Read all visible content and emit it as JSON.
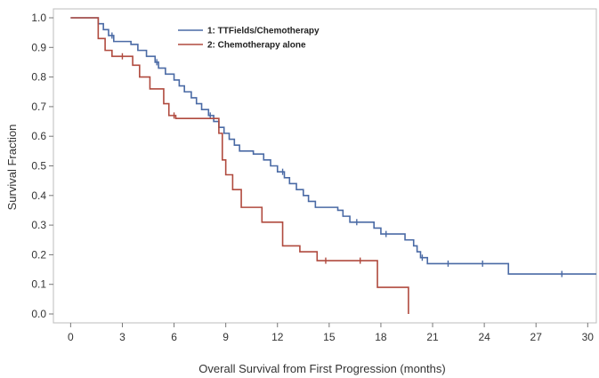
{
  "chart_data": {
    "type": "line",
    "step": true,
    "title": "",
    "xlabel": "Overall Survival from First Progression (months)",
    "ylabel": "Survival Fraction",
    "xlim": [
      -1,
      30.5
    ],
    "ylim": [
      -0.03,
      1.03
    ],
    "xticks": [
      0,
      3,
      6,
      9,
      12,
      15,
      18,
      21,
      24,
      27,
      30
    ],
    "yticks": [
      0.0,
      0.1,
      0.2,
      0.3,
      0.4,
      0.5,
      0.6,
      0.7,
      0.8,
      0.9,
      1.0
    ],
    "ytick_labels": [
      "0.0",
      "0.1",
      "0.2",
      "0.3",
      "0.4",
      "0.5",
      "0.6",
      "0.7",
      "0.8",
      "0.9",
      "1.0"
    ],
    "legend_position": "top-center",
    "series": [
      {
        "name": "1: TTFields/Chemotherapy",
        "color": "#4a6aa5",
        "points": [
          [
            0,
            1.0
          ],
          [
            1.3,
            1.0
          ],
          [
            1.6,
            0.98
          ],
          [
            1.9,
            0.96
          ],
          [
            2.2,
            0.94
          ],
          [
            2.5,
            0.92
          ],
          [
            3.5,
            0.91
          ],
          [
            3.9,
            0.89
          ],
          [
            4.4,
            0.87
          ],
          [
            4.9,
            0.85
          ],
          [
            5.1,
            0.83
          ],
          [
            5.5,
            0.81
          ],
          [
            6.0,
            0.79
          ],
          [
            6.3,
            0.77
          ],
          [
            6.6,
            0.75
          ],
          [
            7.0,
            0.73
          ],
          [
            7.3,
            0.71
          ],
          [
            7.6,
            0.69
          ],
          [
            8.0,
            0.67
          ],
          [
            8.3,
            0.65
          ],
          [
            8.6,
            0.63
          ],
          [
            8.9,
            0.61
          ],
          [
            9.2,
            0.59
          ],
          [
            9.5,
            0.57
          ],
          [
            9.8,
            0.55
          ],
          [
            10.6,
            0.54
          ],
          [
            11.2,
            0.52
          ],
          [
            11.6,
            0.5
          ],
          [
            12.0,
            0.48
          ],
          [
            12.4,
            0.46
          ],
          [
            12.7,
            0.44
          ],
          [
            13.1,
            0.42
          ],
          [
            13.5,
            0.4
          ],
          [
            13.8,
            0.38
          ],
          [
            14.2,
            0.36
          ],
          [
            15.5,
            0.35
          ],
          [
            15.8,
            0.33
          ],
          [
            16.2,
            0.31
          ],
          [
            17.6,
            0.29
          ],
          [
            18.0,
            0.27
          ],
          [
            19.4,
            0.25
          ],
          [
            19.9,
            0.23
          ],
          [
            20.1,
            0.21
          ],
          [
            20.3,
            0.19
          ],
          [
            20.7,
            0.17
          ],
          [
            25.4,
            0.135
          ],
          [
            30.5,
            0.135
          ]
        ],
        "censor_x": [
          2.4,
          5.0,
          8.1,
          12.3,
          16.6,
          18.3,
          20.4,
          21.9,
          23.9,
          28.5
        ]
      },
      {
        "name": "2: Chemotherapy alone",
        "color": "#b04a3e",
        "points": [
          [
            0,
            1.0
          ],
          [
            1.3,
            1.0
          ],
          [
            1.6,
            0.93
          ],
          [
            2.0,
            0.89
          ],
          [
            2.4,
            0.87
          ],
          [
            3.6,
            0.84
          ],
          [
            4.0,
            0.8
          ],
          [
            4.6,
            0.76
          ],
          [
            5.4,
            0.71
          ],
          [
            5.7,
            0.67
          ],
          [
            6.1,
            0.66
          ],
          [
            8.6,
            0.61
          ],
          [
            8.8,
            0.52
          ],
          [
            9.0,
            0.47
          ],
          [
            9.4,
            0.42
          ],
          [
            9.9,
            0.36
          ],
          [
            11.1,
            0.31
          ],
          [
            12.3,
            0.23
          ],
          [
            13.3,
            0.21
          ],
          [
            14.3,
            0.18
          ],
          [
            17.8,
            0.09
          ],
          [
            19.6,
            0.0
          ]
        ],
        "censor_x": [
          3.0,
          6.0,
          14.8,
          16.8
        ]
      }
    ]
  }
}
